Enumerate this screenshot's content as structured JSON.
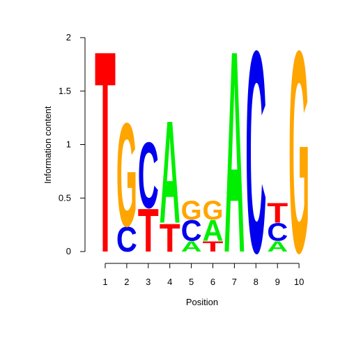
{
  "chart_data": {
    "type": "sequence-logo",
    "xlabel": "Position",
    "ylabel": "Information content",
    "ylim": [
      0,
      2
    ],
    "y_ticks": [
      "0",
      "0.5",
      "1",
      "1.5",
      "2"
    ],
    "x_ticks": [
      "1",
      "2",
      "3",
      "4",
      "5",
      "6",
      "7",
      "8",
      "9",
      "10"
    ],
    "grid": false,
    "colors": {
      "A": "#00ee00",
      "C": "#0000ee",
      "G": "#ffa500",
      "T": "#ff0000"
    },
    "positions": [
      {
        "label": "1",
        "letters": [
          {
            "base": "T",
            "height": 1.93
          }
        ]
      },
      {
        "label": "2",
        "letters": [
          {
            "base": "C",
            "height": 0.24
          },
          {
            "base": "G",
            "height": 0.99
          }
        ]
      },
      {
        "label": "3",
        "letters": [
          {
            "base": "T",
            "height": 0.41
          },
          {
            "base": "C",
            "height": 0.63
          }
        ]
      },
      {
        "label": "4",
        "letters": [
          {
            "base": "T",
            "height": 0.27
          },
          {
            "base": "A",
            "height": 0.98
          }
        ]
      },
      {
        "label": "5",
        "letters": [
          {
            "base": "A",
            "height": 0.1
          },
          {
            "base": "C",
            "height": 0.2
          },
          {
            "base": "G",
            "height": 0.18
          }
        ]
      },
      {
        "label": "6",
        "letters": [
          {
            "base": "T",
            "height": 0.1
          },
          {
            "base": "A",
            "height": 0.2
          },
          {
            "base": "G",
            "height": 0.18
          }
        ]
      },
      {
        "label": "7",
        "letters": [
          {
            "base": "A",
            "height": 1.93
          }
        ]
      },
      {
        "label": "8",
        "letters": [
          {
            "base": "C",
            "height": 1.93
          }
        ]
      },
      {
        "label": "9",
        "letters": [
          {
            "base": "A",
            "height": 0.1
          },
          {
            "base": "C",
            "height": 0.17
          },
          {
            "base": "T",
            "height": 0.19
          }
        ]
      },
      {
        "label": "10",
        "letters": [
          {
            "base": "G",
            "height": 1.93
          }
        ]
      }
    ]
  }
}
